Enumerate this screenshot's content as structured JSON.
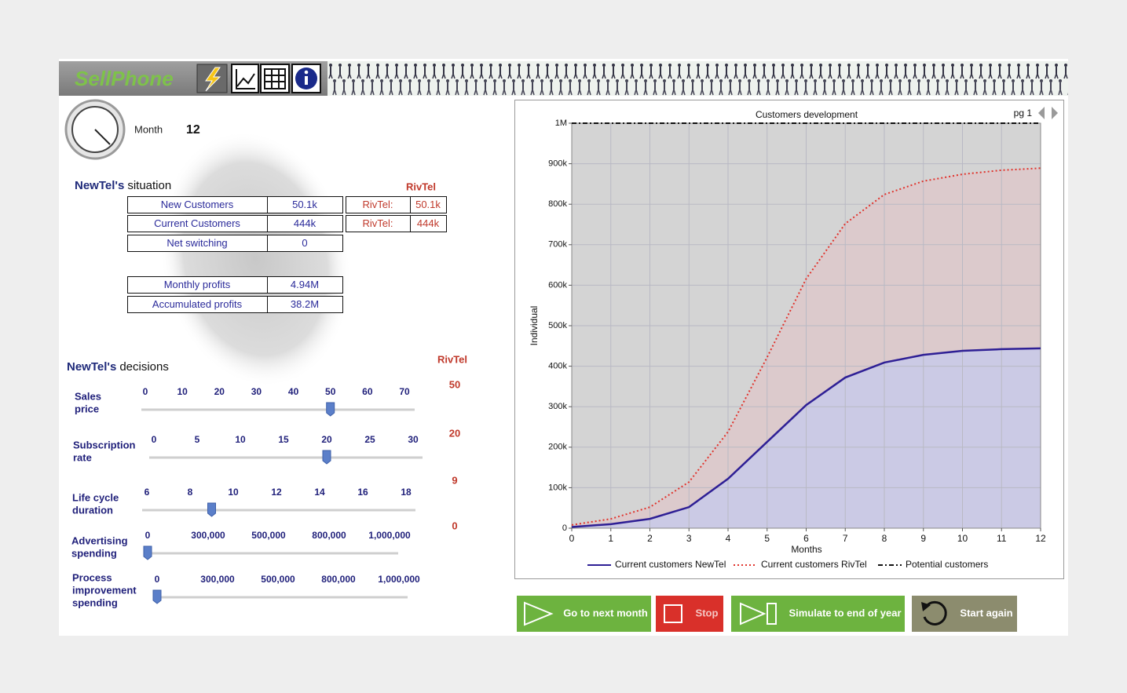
{
  "header": {
    "title": "SellPhone"
  },
  "month": {
    "label": "Month",
    "value": "12"
  },
  "situation": {
    "title_bold": "NewTel's",
    "title_rest": "situation",
    "rival_heading": "RivTel",
    "rows": [
      {
        "label": "New Customers",
        "value": "50.1k",
        "rival_label": "RivTel:",
        "rival_value": "50.1k"
      },
      {
        "label": "Current Customers",
        "value": "444k",
        "rival_label": "RivTel:",
        "rival_value": "444k"
      },
      {
        "label": "Net switching",
        "value": "0"
      },
      {
        "label": "Monthly profits",
        "value": "4.94M"
      },
      {
        "label": "Accumulated profits",
        "value": "38.2M"
      }
    ]
  },
  "decisions": {
    "title_bold": "NewTel's",
    "title_rest": "decisions",
    "rival_heading": "RivTel",
    "sliders": [
      {
        "label": [
          "Sales",
          "price"
        ],
        "ticks": [
          0,
          10,
          20,
          30,
          40,
          50,
          60,
          70
        ],
        "value": 50,
        "rival": 50
      },
      {
        "label": [
          "Subscription",
          "rate"
        ],
        "ticks": [
          0,
          5,
          10,
          15,
          20,
          25,
          30
        ],
        "value": 20,
        "rival": 20
      },
      {
        "label": [
          "Life cycle",
          "duration"
        ],
        "ticks": [
          6,
          8,
          10,
          12,
          14,
          16,
          18
        ],
        "value": 9,
        "rival": 9
      },
      {
        "label": [
          "Advertising",
          "spending"
        ],
        "ticks": [
          0,
          {
            "value": 300000,
            "label": "300,000"
          },
          {
            "value": 500000,
            "label": "500,000"
          },
          {
            "value": 800000,
            "label": "800,000"
          },
          {
            "value": 1000000,
            "label": "1,000,000"
          }
        ],
        "value": 0,
        "rival": 0
      },
      {
        "label": [
          "Process",
          "improvement",
          "spending"
        ],
        "ticks": [
          0,
          {
            "value": 300000,
            "label": "300,000"
          },
          {
            "value": 500000,
            "label": "500,000"
          },
          {
            "value": 800000,
            "label": "800,000"
          },
          {
            "value": 1000000,
            "label": "1,000,000"
          }
        ],
        "value": 0
      }
    ]
  },
  "chart_data": {
    "type": "area",
    "title": "Customers development",
    "page": "pg 1",
    "x_label": "Months",
    "y_label": "Individual",
    "x": [
      0,
      1,
      2,
      3,
      4,
      5,
      6,
      7,
      8,
      9,
      10,
      11,
      12
    ],
    "xlim": [
      0,
      12
    ],
    "xticks": [
      0,
      1,
      2,
      3,
      4,
      5,
      6,
      7,
      8,
      9,
      10,
      11,
      12
    ],
    "ylim": [
      0,
      1000000
    ],
    "yticks": [
      0,
      {
        "value": 100000,
        "label": "100k"
      },
      {
        "value": 200000,
        "label": "200k"
      },
      {
        "value": 300000,
        "label": "300k"
      },
      {
        "value": 400000,
        "label": "400k"
      },
      {
        "value": 500000,
        "label": "500k"
      },
      {
        "value": 600000,
        "label": "600k"
      },
      {
        "value": 700000,
        "label": "700k"
      },
      {
        "value": 800000,
        "label": "800k"
      },
      {
        "value": 900000,
        "label": "900k"
      },
      {
        "value": 1000000,
        "label": "1M"
      }
    ],
    "grid": true,
    "series": [
      {
        "name": "Current customers NewTel",
        "color": "#2e1f95",
        "fill": "#c9c9e6",
        "style": "solid",
        "values": [
          3000,
          10000,
          23000,
          52000,
          122000,
          213000,
          304000,
          372000,
          409000,
          428000,
          438000,
          442000,
          444000
        ]
      },
      {
        "name": "Current customers RivTel",
        "color": "#e0332c",
        "fill": "#dcc9cb",
        "style": "dotted",
        "values": [
          8000,
          23000,
          52000,
          114000,
          238000,
          422000,
          616000,
          752000,
          824000,
          857000,
          874000,
          884000,
          889000
        ]
      },
      {
        "name": "Potential customers",
        "color": "#111111",
        "style": "dashdot",
        "values": [
          1000000,
          1000000,
          1000000,
          1000000,
          1000000,
          1000000,
          1000000,
          1000000,
          1000000,
          1000000,
          1000000,
          1000000,
          1000000
        ]
      }
    ]
  },
  "buttons": [
    {
      "label": "Go to next month"
    },
    {
      "label": "Stop"
    },
    {
      "label": "Simulate to end of year"
    },
    {
      "label": "Start again"
    }
  ]
}
